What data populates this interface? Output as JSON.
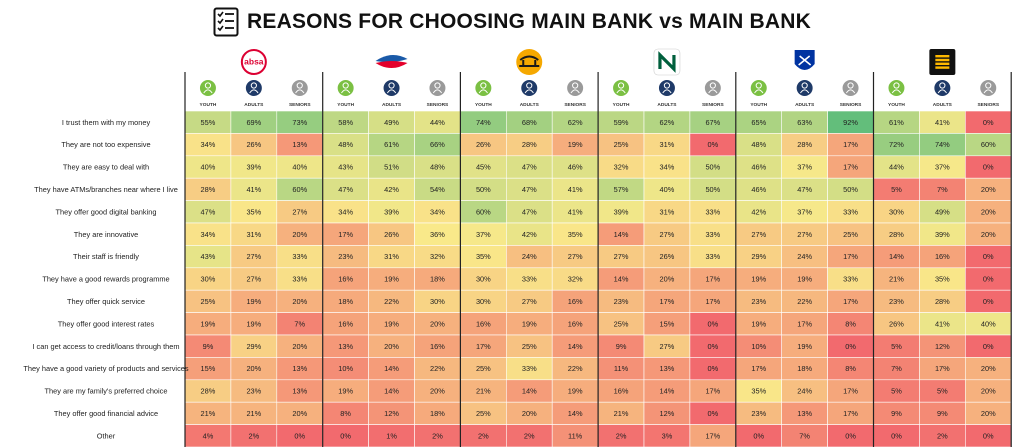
{
  "header": {
    "title": "REASONS FOR CHOOSING MAIN BANK vs MAIN BANK"
  },
  "chart_data": {
    "type": "heatmap",
    "title": "REASONS FOR CHOOSING MAIN BANK vs MAIN BANK",
    "banks": [
      {
        "logo": "absa-logo",
        "logo_text": "absa",
        "color": "#dc0032"
      },
      {
        "logo": "capitec-logo",
        "logo_text": "",
        "color": "#1a5aa8"
      },
      {
        "logo": "fnb-logo",
        "logo_text": "",
        "color": "#f5a800"
      },
      {
        "logo": "nedbank-logo",
        "logo_text": "",
        "color": "#005f3c"
      },
      {
        "logo": "standard-bank-logo",
        "logo_text": "",
        "color": "#0033a1"
      },
      {
        "logo": "discovery-bank-logo",
        "logo_text": "",
        "color": "#ffb900"
      }
    ],
    "segments": [
      {
        "label": "YOUTH",
        "color": "#7bc043"
      },
      {
        "label": "ADULTS",
        "color": "#1f3a68"
      },
      {
        "label": "SENIORS",
        "color": "#9a9a9a"
      }
    ],
    "rows": [
      "I trust them with my money",
      "They are not too expensive",
      "They are easy to deal with",
      "They have ATMs/branches near where I live",
      "They offer good digital banking",
      "They are innovative",
      "Their staff is friendly",
      "They have a good rewards programme",
      "They offer quick service",
      "They offer good interest rates",
      "I can get access to credit/loans through them",
      "They have a good variety of products and services",
      "They are my family's preferred choice",
      "They offer good financial advice",
      "Other"
    ],
    "values": [
      [
        55,
        69,
        73,
        58,
        49,
        44,
        74,
        68,
        62,
        59,
        62,
        67,
        65,
        63,
        92,
        61,
        41,
        0
      ],
      [
        34,
        26,
        13,
        48,
        61,
        66,
        26,
        28,
        19,
        25,
        31,
        0,
        48,
        28,
        17,
        72,
        74,
        60
      ],
      [
        40,
        39,
        40,
        43,
        51,
        48,
        45,
        47,
        46,
        32,
        34,
        50,
        46,
        37,
        17,
        44,
        37,
        0
      ],
      [
        28,
        41,
        60,
        47,
        42,
        54,
        50,
        47,
        41,
        57,
        40,
        50,
        46,
        47,
        50,
        5,
        7,
        20
      ],
      [
        47,
        35,
        27,
        34,
        39,
        34,
        60,
        47,
        41,
        39,
        31,
        33,
        42,
        37,
        33,
        30,
        49,
        20
      ],
      [
        34,
        31,
        20,
        17,
        26,
        36,
        37,
        42,
        35,
        14,
        27,
        33,
        27,
        27,
        25,
        28,
        39,
        20
      ],
      [
        43,
        27,
        33,
        23,
        31,
        32,
        35,
        24,
        27,
        27,
        26,
        33,
        29,
        24,
        17,
        14,
        16,
        0
      ],
      [
        30,
        27,
        33,
        16,
        19,
        18,
        30,
        33,
        32,
        14,
        20,
        17,
        19,
        19,
        33,
        21,
        35,
        0
      ],
      [
        25,
        19,
        20,
        18,
        22,
        30,
        30,
        27,
        16,
        23,
        17,
        17,
        23,
        22,
        17,
        23,
        28,
        0
      ],
      [
        19,
        19,
        7,
        16,
        19,
        20,
        16,
        19,
        16,
        25,
        15,
        0,
        19,
        17,
        8,
        26,
        41,
        40
      ],
      [
        9,
        29,
        20,
        13,
        20,
        16,
        17,
        25,
        14,
        9,
        27,
        0,
        10,
        19,
        0,
        5,
        12,
        0
      ],
      [
        15,
        20,
        13,
        10,
        14,
        22,
        25,
        33,
        22,
        11,
        13,
        0,
        17,
        18,
        8,
        7,
        17,
        20
      ],
      [
        28,
        23,
        13,
        19,
        14,
        20,
        21,
        14,
        19,
        16,
        14,
        17,
        35,
        24,
        17,
        5,
        5,
        20
      ],
      [
        21,
        21,
        20,
        8,
        12,
        18,
        25,
        20,
        14,
        21,
        12,
        0,
        23,
        13,
        17,
        9,
        9,
        20
      ],
      [
        4,
        2,
        0,
        0,
        1,
        2,
        2,
        2,
        11,
        2,
        3,
        17,
        0,
        7,
        0,
        0,
        2,
        0
      ]
    ],
    "value_suffix": "%",
    "color_scale": {
      "low": "#f26a6e",
      "mid": "#f9e98a",
      "high": "#63be7b",
      "min": 0,
      "max": 92
    }
  }
}
